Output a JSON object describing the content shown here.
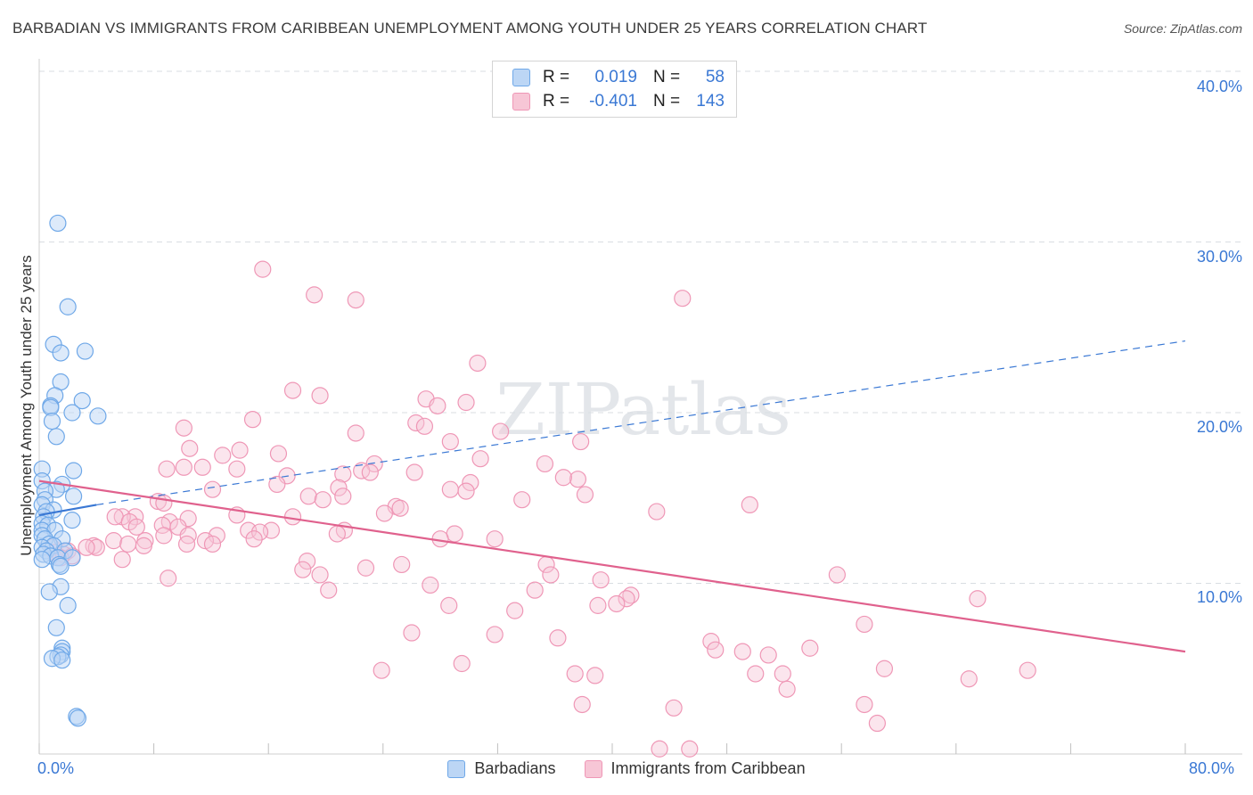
{
  "title": "BARBADIAN VS IMMIGRANTS FROM CARIBBEAN UNEMPLOYMENT AMONG YOUTH UNDER 25 YEARS CORRELATION CHART",
  "source": "Source: ZipAtlas.com",
  "watermark": "ZIPatlas",
  "legend": {
    "row1": {
      "r_label": "R =",
      "r_value": "0.019",
      "n_label": "N =",
      "n_value": "58"
    },
    "row2": {
      "r_label": "R =",
      "r_value": "-0.401",
      "n_label": "N =",
      "n_value": "143"
    }
  },
  "bottom_legend": {
    "series1": "Barbadians",
    "series2": "Immigrants from Caribbean"
  },
  "colors": {
    "blue": "#6fa8e8",
    "blue_fill": "#bcd6f5",
    "blue_line": "#3a78d4",
    "pink": "#ef97b6",
    "pink_fill": "#f7c6d6",
    "pink_line": "#e0618d",
    "tick_text": "#3a78d4"
  },
  "chart_data": {
    "type": "scatter",
    "title": "BARBADIAN VS IMMIGRANTS FROM CARIBBEAN UNEMPLOYMENT AMONG YOUTH UNDER 25 YEARS CORRELATION CHART",
    "xlabel": "",
    "ylabel": "Unemployment Among Youth under 25 years",
    "xlim": [
      0,
      80
    ],
    "ylim": [
      0,
      40
    ],
    "x_tick_labels": [
      "0.0%",
      "80.0%"
    ],
    "y_ticks": [
      10,
      20,
      30,
      40
    ],
    "y_tick_labels": [
      "10.0%",
      "20.0%",
      "30.0%",
      "40.0%"
    ],
    "grid": true,
    "series": [
      {
        "name": "Barbadians",
        "r": 0.019,
        "n": 58,
        "trend_solid": {
          "x": [
            0,
            4
          ],
          "y": [
            14.0,
            14.6
          ]
        },
        "trend_dashed": {
          "x": [
            4,
            80
          ],
          "y": [
            14.6,
            24.2
          ]
        },
        "points": [
          [
            1.3,
            31.1
          ],
          [
            2.0,
            26.2
          ],
          [
            1.0,
            24.0
          ],
          [
            3.2,
            23.6
          ],
          [
            1.5,
            23.5
          ],
          [
            1.5,
            21.8
          ],
          [
            1.1,
            21.0
          ],
          [
            3.0,
            20.7
          ],
          [
            0.8,
            20.4
          ],
          [
            0.8,
            20.3
          ],
          [
            2.3,
            20.0
          ],
          [
            4.1,
            19.8
          ],
          [
            0.9,
            19.5
          ],
          [
            1.2,
            18.6
          ],
          [
            0.2,
            16.7
          ],
          [
            2.4,
            16.6
          ],
          [
            0.2,
            16.0
          ],
          [
            1.6,
            15.8
          ],
          [
            1.2,
            15.5
          ],
          [
            0.4,
            15.4
          ],
          [
            2.4,
            15.1
          ],
          [
            0.4,
            14.9
          ],
          [
            0.2,
            14.6
          ],
          [
            1.0,
            14.3
          ],
          [
            0.5,
            14.2
          ],
          [
            0.3,
            13.9
          ],
          [
            2.3,
            13.7
          ],
          [
            0.2,
            13.5
          ],
          [
            0.6,
            13.4
          ],
          [
            0.2,
            13.1
          ],
          [
            1.1,
            13.1
          ],
          [
            0.2,
            12.8
          ],
          [
            0.4,
            12.6
          ],
          [
            1.6,
            12.6
          ],
          [
            0.7,
            12.3
          ],
          [
            1.0,
            12.2
          ],
          [
            0.2,
            12.1
          ],
          [
            0.5,
            11.9
          ],
          [
            1.8,
            11.9
          ],
          [
            0.3,
            11.7
          ],
          [
            0.8,
            11.6
          ],
          [
            1.3,
            11.5
          ],
          [
            2.3,
            11.5
          ],
          [
            0.2,
            11.4
          ],
          [
            1.4,
            11.1
          ],
          [
            1.5,
            11.0
          ],
          [
            1.5,
            9.8
          ],
          [
            0.7,
            9.5
          ],
          [
            2.0,
            8.7
          ],
          [
            1.2,
            7.4
          ],
          [
            1.6,
            6.2
          ],
          [
            1.6,
            6.0
          ],
          [
            1.5,
            5.8
          ],
          [
            1.3,
            5.7
          ],
          [
            0.9,
            5.6
          ],
          [
            1.6,
            5.5
          ],
          [
            2.6,
            2.2
          ],
          [
            2.7,
            2.1
          ]
        ]
      },
      {
        "name": "Immigrants from Caribbean",
        "r": -0.401,
        "n": 143,
        "trend_solid": {
          "x": [
            0,
            80
          ],
          "y": [
            16.0,
            6.0
          ]
        },
        "points": [
          [
            15.6,
            28.4
          ],
          [
            19.2,
            26.9
          ],
          [
            22.1,
            26.6
          ],
          [
            44.9,
            26.7
          ],
          [
            30.6,
            22.9
          ],
          [
            17.7,
            21.3
          ],
          [
            19.6,
            21.0
          ],
          [
            27.0,
            20.8
          ],
          [
            29.8,
            20.6
          ],
          [
            27.8,
            20.4
          ],
          [
            14.9,
            19.6
          ],
          [
            26.3,
            19.4
          ],
          [
            26.9,
            19.2
          ],
          [
            10.1,
            19.1
          ],
          [
            32.2,
            18.9
          ],
          [
            22.1,
            18.8
          ],
          [
            28.7,
            18.3
          ],
          [
            37.8,
            18.3
          ],
          [
            10.5,
            17.9
          ],
          [
            14.0,
            17.8
          ],
          [
            16.7,
            17.6
          ],
          [
            12.8,
            17.5
          ],
          [
            30.8,
            17.3
          ],
          [
            23.4,
            17.0
          ],
          [
            35.3,
            17.0
          ],
          [
            10.1,
            16.8
          ],
          [
            11.4,
            16.8
          ],
          [
            13.8,
            16.7
          ],
          [
            8.9,
            16.7
          ],
          [
            22.5,
            16.6
          ],
          [
            23.1,
            16.5
          ],
          [
            26.2,
            16.5
          ],
          [
            21.2,
            16.4
          ],
          [
            17.3,
            16.3
          ],
          [
            37.6,
            16.1
          ],
          [
            30.1,
            15.9
          ],
          [
            36.6,
            16.2
          ],
          [
            16.6,
            15.8
          ],
          [
            20.9,
            15.6
          ],
          [
            12.1,
            15.5
          ],
          [
            28.7,
            15.5
          ],
          [
            29.8,
            15.4
          ],
          [
            38.1,
            15.2
          ],
          [
            18.8,
            15.1
          ],
          [
            21.2,
            15.1
          ],
          [
            19.8,
            14.9
          ],
          [
            33.7,
            14.9
          ],
          [
            8.3,
            14.8
          ],
          [
            8.7,
            14.7
          ],
          [
            49.6,
            14.6
          ],
          [
            24.9,
            14.5
          ],
          [
            25.2,
            14.4
          ],
          [
            43.1,
            14.2
          ],
          [
            24.1,
            14.1
          ],
          [
            13.8,
            14.0
          ],
          [
            17.7,
            13.9
          ],
          [
            6.7,
            13.9
          ],
          [
            5.8,
            13.9
          ],
          [
            5.3,
            13.9
          ],
          [
            10.4,
            13.8
          ],
          [
            9.1,
            13.6
          ],
          [
            6.3,
            13.6
          ],
          [
            8.6,
            13.4
          ],
          [
            6.8,
            13.3
          ],
          [
            9.7,
            13.3
          ],
          [
            14.6,
            13.1
          ],
          [
            16.2,
            13.1
          ],
          [
            21.3,
            13.1
          ],
          [
            15.4,
            13.0
          ],
          [
            29.0,
            12.9
          ],
          [
            20.8,
            12.9
          ],
          [
            8.7,
            12.8
          ],
          [
            12.4,
            12.8
          ],
          [
            10.4,
            12.8
          ],
          [
            31.8,
            12.6
          ],
          [
            15.0,
            12.6
          ],
          [
            28.0,
            12.6
          ],
          [
            11.6,
            12.5
          ],
          [
            5.2,
            12.5
          ],
          [
            7.4,
            12.5
          ],
          [
            6.2,
            12.3
          ],
          [
            12.1,
            12.3
          ],
          [
            10.3,
            12.3
          ],
          [
            7.3,
            12.2
          ],
          [
            3.8,
            12.2
          ],
          [
            4.0,
            12.1
          ],
          [
            3.3,
            12.1
          ],
          [
            0.9,
            12.1
          ],
          [
            2.0,
            11.9
          ],
          [
            1.1,
            11.8
          ],
          [
            1.7,
            11.7
          ],
          [
            2.3,
            11.6
          ],
          [
            1.5,
            11.5
          ],
          [
            5.8,
            11.4
          ],
          [
            18.7,
            11.3
          ],
          [
            25.3,
            11.1
          ],
          [
            35.4,
            11.1
          ],
          [
            22.8,
            10.9
          ],
          [
            18.4,
            10.8
          ],
          [
            19.6,
            10.5
          ],
          [
            55.7,
            10.5
          ],
          [
            35.7,
            10.5
          ],
          [
            9.0,
            10.3
          ],
          [
            39.2,
            10.2
          ],
          [
            27.3,
            9.9
          ],
          [
            34.6,
            9.6
          ],
          [
            20.2,
            9.6
          ],
          [
            41.3,
            9.3
          ],
          [
            41.0,
            9.1
          ],
          [
            65.5,
            9.1
          ],
          [
            40.3,
            8.8
          ],
          [
            39.0,
            8.7
          ],
          [
            28.6,
            8.7
          ],
          [
            33.2,
            8.4
          ],
          [
            57.6,
            7.6
          ],
          [
            26.0,
            7.1
          ],
          [
            31.8,
            7.0
          ],
          [
            36.2,
            6.8
          ],
          [
            46.9,
            6.6
          ],
          [
            47.2,
            6.1
          ],
          [
            49.1,
            6.0
          ],
          [
            53.8,
            6.2
          ],
          [
            50.9,
            5.8
          ],
          [
            29.5,
            5.3
          ],
          [
            59.0,
            5.0
          ],
          [
            69.0,
            4.9
          ],
          [
            23.9,
            4.9
          ],
          [
            37.4,
            4.7
          ],
          [
            38.8,
            4.6
          ],
          [
            50.0,
            4.7
          ],
          [
            51.9,
            4.7
          ],
          [
            64.9,
            4.4
          ],
          [
            52.2,
            3.8
          ],
          [
            37.9,
            2.9
          ],
          [
            44.3,
            2.7
          ],
          [
            57.6,
            2.9
          ],
          [
            58.5,
            1.8
          ],
          [
            45.4,
            0.3
          ],
          [
            43.3,
            0.3
          ]
        ]
      }
    ]
  }
}
